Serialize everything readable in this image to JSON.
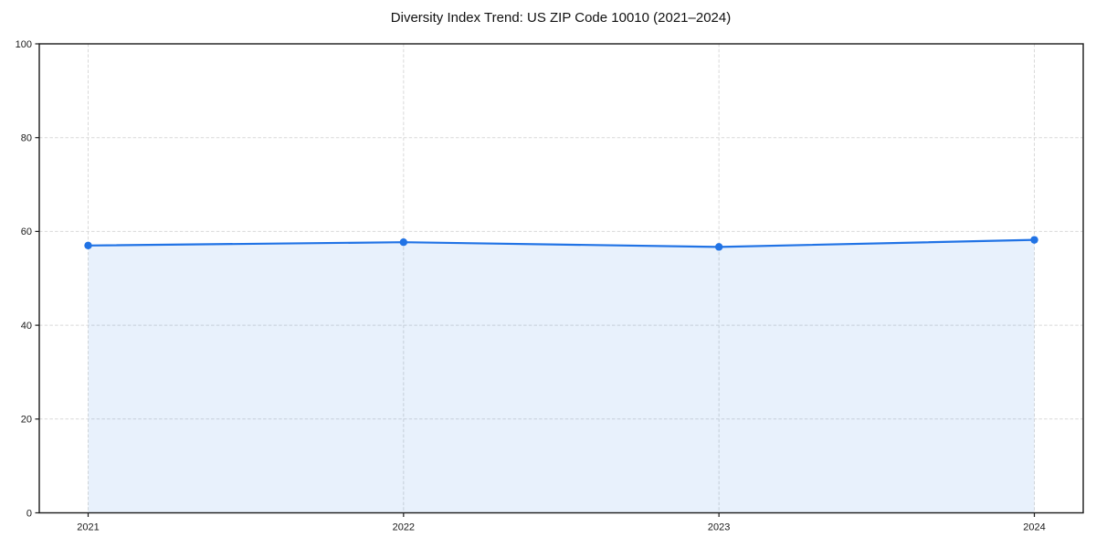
{
  "chart_data": {
    "type": "line",
    "title": "Diversity Index Trend: US ZIP Code 10010 (2021–2024)",
    "x": [
      2021,
      2022,
      2023,
      2024
    ],
    "series": [
      {
        "name": "Diversity Index",
        "values": [
          57.0,
          57.7,
          56.7,
          58.2
        ]
      }
    ],
    "xlabel": "",
    "ylabel": "",
    "ylim": [
      0,
      100
    ],
    "yticks": [
      0,
      20,
      40,
      60,
      80,
      100
    ],
    "grid": true,
    "grid_style": "dashed",
    "area_fill": true,
    "legend_position": "none",
    "markers": true,
    "colors": {
      "line": "#2173e5",
      "fill": "#2173e5",
      "fill_opacity": 0.1,
      "grid": "#d9d9d9",
      "spine": "#1a1a1a",
      "tick_label": "#1a1a1a",
      "background": "#ffffff"
    }
  }
}
